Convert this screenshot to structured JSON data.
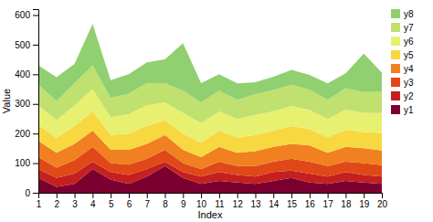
{
  "chart_data": {
    "type": "area",
    "stacked": true,
    "grid": false,
    "legend": "right",
    "xlabel": "Index",
    "ylabel": "Value",
    "x": [
      1,
      2,
      3,
      4,
      5,
      6,
      7,
      8,
      9,
      10,
      11,
      12,
      13,
      14,
      15,
      16,
      17,
      18,
      19,
      20
    ],
    "xlim": [
      1,
      20
    ],
    "ylim": [
      0,
      620
    ],
    "xticks": [
      1,
      2,
      3,
      4,
      5,
      6,
      7,
      8,
      9,
      10,
      11,
      12,
      13,
      14,
      15,
      16,
      17,
      18,
      19,
      20
    ],
    "yticks": [
      0,
      100,
      200,
      300,
      400,
      500,
      600
    ],
    "series": [
      {
        "name": "y1",
        "color": "#7B0030",
        "values": [
          50,
          20,
          30,
          80,
          45,
          30,
          55,
          90,
          50,
          30,
          40,
          35,
          30,
          40,
          50,
          35,
          30,
          40,
          35,
          30
        ]
      },
      {
        "name": "y2",
        "color": "#C42020",
        "values": [
          30,
          30,
          35,
          25,
          25,
          30,
          25,
          15,
          20,
          25,
          30,
          25,
          25,
          30,
          25,
          30,
          25,
          30,
          25,
          25
        ]
      },
      {
        "name": "y3",
        "color": "#E04818",
        "values": [
          40,
          35,
          45,
          50,
          30,
          35,
          35,
          40,
          30,
          25,
          35,
          30,
          35,
          35,
          40,
          40,
          35,
          35,
          40,
          38
        ]
      },
      {
        "name": "y4",
        "color": "#F08020",
        "values": [
          55,
          50,
          55,
          55,
          45,
          50,
          50,
          50,
          45,
          40,
          50,
          45,
          50,
          50,
          50,
          55,
          45,
          50,
          50,
          50
        ]
      },
      {
        "name": "y5",
        "color": "#F8D840",
        "values": [
          55,
          50,
          60,
          65,
          50,
          55,
          60,
          50,
          55,
          50,
          55,
          52,
          55,
          55,
          60,
          55,
          52,
          58,
          55,
          58
        ]
      },
      {
        "name": "y6",
        "color": "#E8F070",
        "values": [
          65,
          60,
          70,
          75,
          60,
          65,
          70,
          60,
          70,
          65,
          65,
          62,
          68,
          65,
          68,
          65,
          62,
          68,
          65,
          68
        ]
      },
      {
        "name": "y7",
        "color": "#C0E070",
        "values": [
          70,
          65,
          75,
          80,
          65,
          70,
          75,
          65,
          75,
          70,
          70,
          65,
          70,
          72,
          72,
          68,
          65,
          72,
          70,
          72
        ]
      },
      {
        "name": "y8",
        "color": "#90D070",
        "values": [
          65,
          80,
          65,
          140,
          60,
          65,
          70,
          80,
          160,
          65,
          55,
          55,
          40,
          45,
          50,
          50,
          55,
          50,
          130,
          65
        ]
      }
    ]
  }
}
